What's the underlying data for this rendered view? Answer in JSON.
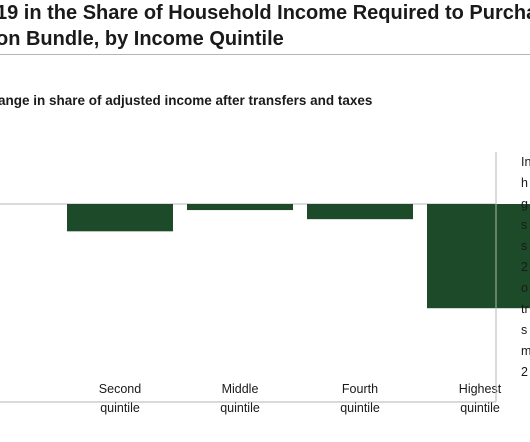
{
  "title": {
    "line1": "19 in the Share of Household Income Required to Purcha",
    "line2": "on Bundle, by Income Quintile"
  },
  "subtitle": "ange in share of adjusted income after transfers and taxes",
  "side_text": [
    "In",
    "h",
    "g",
    "s",
    "s",
    "2",
    "o",
    "tr",
    "s",
    "m",
    "2"
  ],
  "chart_data": {
    "type": "bar",
    "categories": [
      {
        "line1": "",
        "line2": ""
      },
      {
        "line1": "Second",
        "line2": "quintile"
      },
      {
        "line1": "Middle",
        "line2": "quintile"
      },
      {
        "line1": "Fourth",
        "line2": "quintile"
      },
      {
        "line1": "Highest",
        "line2": "quintile"
      }
    ],
    "values": [
      null,
      -0.27,
      -0.06,
      -0.15,
      -1.03
    ],
    "bar_color": "#1d4a29",
    "axis_color": "#b5b5b5",
    "ylim": [
      -1.45,
      0.85
    ],
    "grid": false,
    "legend": "none"
  }
}
